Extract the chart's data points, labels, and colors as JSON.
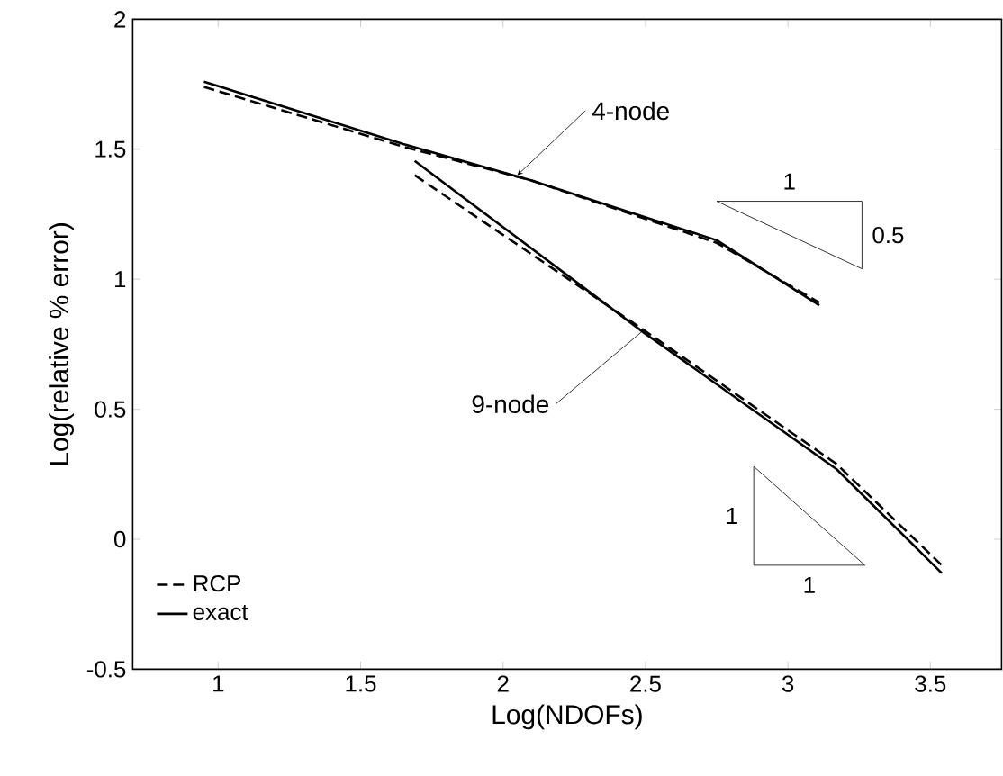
{
  "chart_data": {
    "type": "line",
    "xlabel": "Log(NDOFs)",
    "ylabel": "Log(relative % error)",
    "xlim": [
      0.7,
      3.75
    ],
    "ylim": [
      -0.5,
      2
    ],
    "xticks": [
      1,
      1.5,
      2,
      2.5,
      3,
      3.5
    ],
    "yticks": [
      -0.5,
      0,
      0.5,
      1,
      1.5,
      2
    ],
    "grid": false,
    "legend": "bottom left",
    "marker": "none",
    "series": [
      {
        "name": "RCP",
        "color": "#000000",
        "line_style": "dashed",
        "x": [
          0.95,
          1.65,
          2.1,
          2.75,
          3.11
        ],
        "values": [
          1.74,
          1.51,
          1.38,
          1.14,
          0.91
        ]
      },
      {
        "name": "exact",
        "color": "#000000",
        "line_style": "solid",
        "x": [
          0.95,
          1.65,
          2.1,
          2.75,
          3.11
        ],
        "values": [
          1.76,
          1.52,
          1.38,
          1.15,
          0.9
        ]
      },
      {
        "color": "#000000",
        "line_style": "dashed",
        "x": [
          1.69,
          2.5,
          3.17,
          3.54
        ],
        "values": [
          1.4,
          0.8,
          0.29,
          -0.1
        ]
      },
      {
        "color": "#000000",
        "line_style": "solid",
        "x": [
          1.69,
          2.5,
          3.17,
          3.54
        ],
        "values": [
          1.455,
          0.79,
          0.27,
          -0.13
        ]
      }
    ],
    "annotations": [
      {
        "text": "4-node",
        "x": 2.05,
        "y": 1.4
      },
      {
        "text": "9-node",
        "x": 2.5,
        "y": 0.81
      },
      "1",
      "0.5",
      "1",
      "1"
    ]
  }
}
